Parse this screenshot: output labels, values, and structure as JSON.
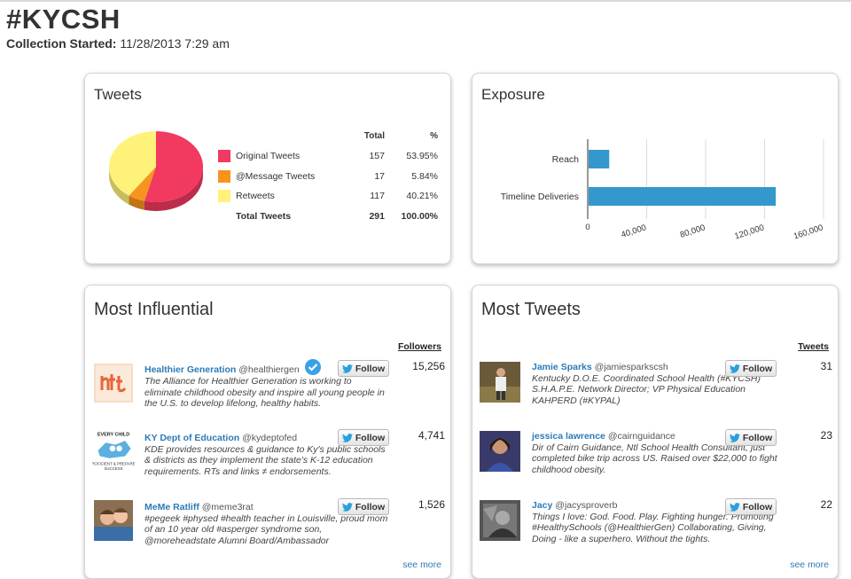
{
  "header": {
    "title": "#KYCSH",
    "started_label": "Collection Started:",
    "started_value": "11/28/2013 7:29 am"
  },
  "tweets": {
    "title": "Tweets",
    "col_total": "Total",
    "col_pct": "%",
    "rows": [
      {
        "label": "Original Tweets",
        "total": "157",
        "pct": "53.95%",
        "color": "#f2395f"
      },
      {
        "label": "@Message Tweets",
        "total": "17",
        "pct": "5.84%",
        "color": "#f7941d"
      },
      {
        "label": "Retweets",
        "total": "117",
        "pct": "40.21%",
        "color": "#fff27a"
      }
    ],
    "total_row": {
      "label": "Total Tweets",
      "total": "291",
      "pct": "100.00%"
    }
  },
  "exposure": {
    "title": "Exposure"
  },
  "chart_data": {
    "type": "bar",
    "orientation": "horizontal",
    "categories": [
      "Reach",
      "Timeline Deliveries"
    ],
    "values": [
      14000,
      127000
    ],
    "xlim": [
      0,
      160000
    ],
    "xticks": [
      "0",
      "40,000",
      "80,000",
      "120,000",
      "160,000"
    ],
    "grid": true,
    "color": "#3399cc"
  },
  "influential": {
    "title": "Most Influential",
    "col_label": "Followers",
    "see_more": "see more",
    "users": [
      {
        "name": "Healthier Generation",
        "handle": "@healthiergen",
        "desc": "The Alliance for Healthier Generation is working to eliminate childhood obesity and inspire all young people in the U.S. to develop lifelong, healthy habits.",
        "count": "15,256",
        "follow": "Follow",
        "verified": true
      },
      {
        "name": "KY Dept of Education",
        "handle": "@kydeptofed",
        "desc": "KDE provides resources & guidance to Ky's public schools & districts as they implement the state's K-12 education requirements. RTs and links ≠ endorsements.",
        "count": "4,741",
        "follow": "Follow",
        "verified": false
      },
      {
        "name": "MeMe Ratliff",
        "handle": "@meme3rat",
        "desc": "#pegeek #physed #health teacher in Louisville, proud mom of an 10 year old #asperger syndrome son, @moreheadstate Alumni Board/Ambassador",
        "count": "1,526",
        "follow": "Follow",
        "verified": false
      }
    ]
  },
  "mosttweets": {
    "title": "Most Tweets",
    "col_label": "Tweets",
    "see_more": "see more",
    "users": [
      {
        "name": "Jamie Sparks",
        "handle": "@jamiesparkscsh",
        "desc": "Kentucky D.O.E. Coordinated School Health (#KYCSH) S.H.A.P.E. Network Director; VP Physical Education KAHPERD (#KYPAL)",
        "count": "31",
        "follow": "Follow"
      },
      {
        "name": "jessica lawrence",
        "handle": "@cairnguidance",
        "desc": "Dir of Cairn Guidance, Ntl School Health Consultant, just completed bike trip across US. Raised over $22,000 to fight childhood obesity.",
        "count": "23",
        "follow": "Follow"
      },
      {
        "name": "Jacy",
        "handle": "@jacysproverb",
        "desc": "Things I love: God. Food. Play. Fighting hunger. Promoting #HealthySchools (@HealthierGen) Collaborating, Giving, Doing - like a superhero. Without the tights.",
        "count": "22",
        "follow": "Follow"
      }
    ]
  }
}
